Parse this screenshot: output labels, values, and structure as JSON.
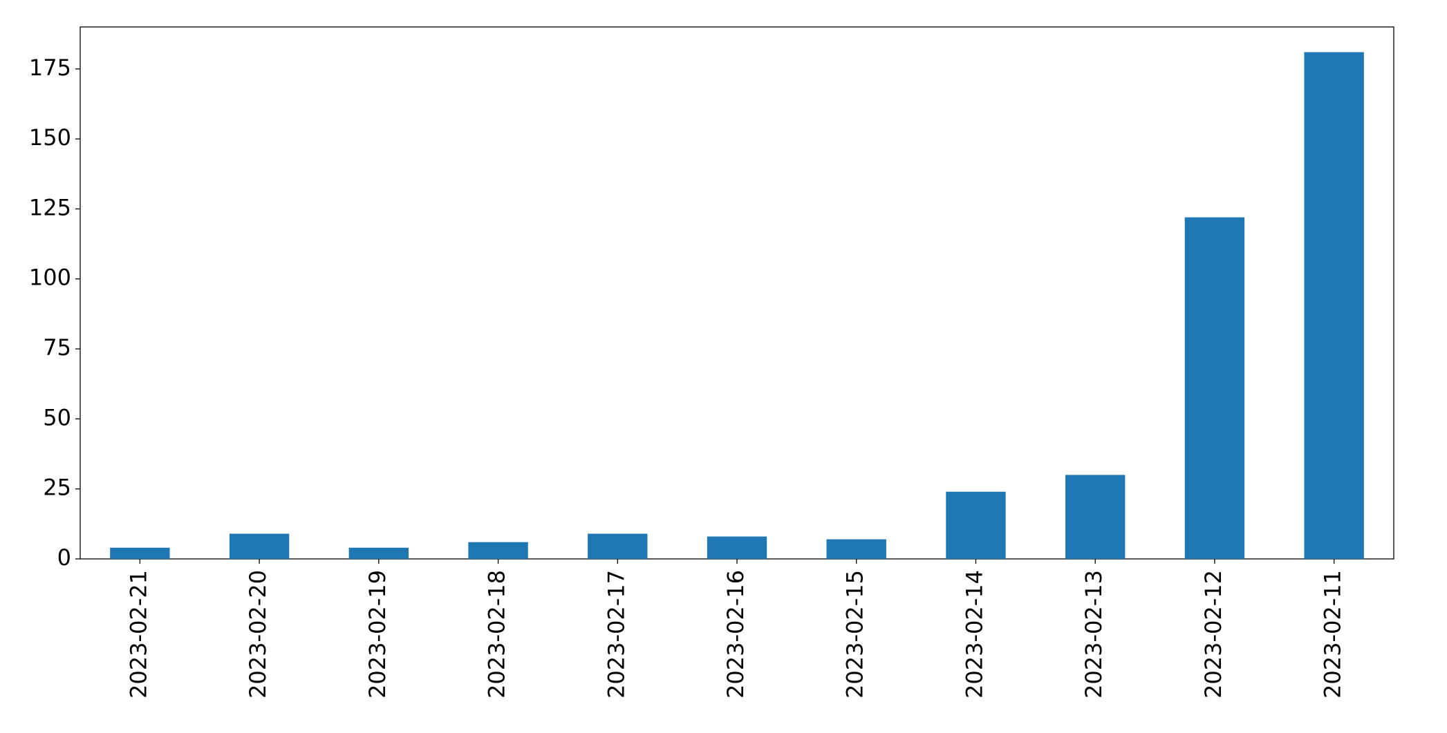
{
  "chart_data": {
    "type": "bar",
    "categories": [
      "2023-02-21",
      "2023-02-20",
      "2023-02-19",
      "2023-02-18",
      "2023-02-17",
      "2023-02-16",
      "2023-02-15",
      "2023-02-14",
      "2023-02-13",
      "2023-02-12",
      "2023-02-11"
    ],
    "values": [
      4,
      9,
      4,
      6,
      9,
      8,
      7,
      24,
      30,
      122,
      181
    ],
    "color": "#1f77b4",
    "ylim": [
      0,
      190
    ],
    "yticks": [
      0,
      25,
      50,
      75,
      100,
      125,
      150,
      175
    ],
    "grid": false
  }
}
